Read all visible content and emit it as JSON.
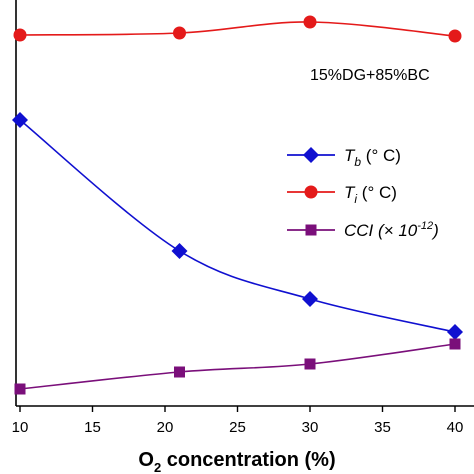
{
  "chart_data": {
    "type": "line",
    "title": "",
    "annotation": "15%DG+85%BC",
    "xlabel": {
      "main": "O",
      "sub": "2",
      "rest": " concentration (%)"
    },
    "ylabel": "",
    "x": [
      10,
      21,
      30,
      40
    ],
    "xlim": [
      10,
      40
    ],
    "xticks": [
      "10",
      "15",
      "20",
      "25",
      "30",
      "35",
      "40"
    ],
    "yticks_shown": false,
    "grid": false,
    "legend_position": "right",
    "series": [
      {
        "name": "T_b (° C)",
        "legend": {
          "sym": "T",
          "sub": "b",
          "unit": " (° C)"
        },
        "marker": "diamond",
        "color": "#1010d0",
        "values": [
          120,
          251,
          299,
          332
        ]
      },
      {
        "name": "T_i (° C)",
        "legend": {
          "sym": "T",
          "sub": "i",
          "unit": " (° C)"
        },
        "marker": "circle",
        "color": "#e41a1a",
        "values": [
          35,
          33,
          22,
          36
        ]
      },
      {
        "name": "CCI (× 10^-12)",
        "legend": {
          "sym": "CCI",
          "unit": " (× 10",
          "sup": "-12",
          "close": ")"
        },
        "marker": "square",
        "color": "#7a0f7a",
        "values": [
          389,
          372,
          364,
          344
        ]
      }
    ],
    "value_axis_note": "values in plot units (inverted scale, larger value is lower on chart)"
  }
}
